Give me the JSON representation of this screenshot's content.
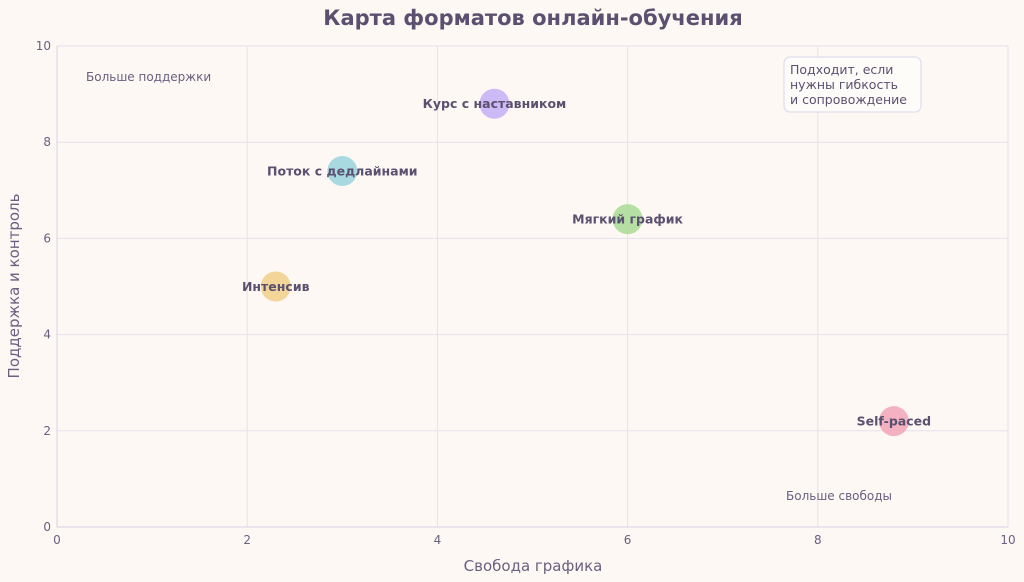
{
  "chart_data": {
    "type": "scatter",
    "title": "Карта форматов онлайн-обучения",
    "xlabel": "Свобода графика",
    "ylabel": "Поддержка и контроль",
    "xlim": [
      0,
      10
    ],
    "ylim": [
      0,
      10
    ],
    "xticks": [
      0,
      2,
      4,
      6,
      8,
      10
    ],
    "yticks": [
      0,
      2,
      4,
      6,
      8,
      10
    ],
    "grid": true,
    "points": [
      {
        "label": "Курс с наставником",
        "x": 4.6,
        "y": 8.8,
        "color": "#c5b3f5"
      },
      {
        "label": "Поток с дедлайнами",
        "x": 3.0,
        "y": 7.4,
        "color": "#9fd4de"
      },
      {
        "label": "Мягкий график",
        "x": 6.0,
        "y": 6.4,
        "color": "#aedb9a"
      },
      {
        "label": "Интенсив",
        "x": 2.3,
        "y": 5.0,
        "color": "#f3d08e"
      },
      {
        "label": "Self-paced",
        "x": 8.8,
        "y": 2.2,
        "color": "#f3a9bb"
      }
    ],
    "annotations": {
      "top_left": "Больше поддержки",
      "bottom_right": "Больше свободы",
      "note_lines": [
        "Подходит, если",
        "нужны гибкость",
        "и сопровождение"
      ]
    }
  },
  "colors": {
    "background": "#fdf8f3",
    "text": "#5a5070",
    "grid": "#e6e1ec"
  }
}
